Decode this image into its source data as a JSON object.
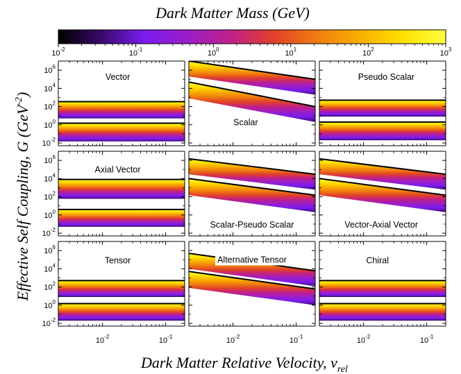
{
  "chart_data": {
    "type": "area",
    "title": "",
    "xlabel": "Dark Matter Relative Velocity, v",
    "xlabel_sub": "rel",
    "ylabel": "Effective Self Coupling, G (GeV",
    "ylabel_exp": "-2",
    "ylabel_close": ")",
    "x_scale": "log",
    "y_scale": "log",
    "xlim": [
      0.002,
      0.2
    ],
    "ylim": [
      0.005,
      10000000
    ],
    "x_ticks": [
      {
        "value": 0.01,
        "base": "10",
        "exp": "-2"
      },
      {
        "value": 0.1,
        "base": "10",
        "exp": "-1"
      }
    ],
    "y_ticks": [
      {
        "value": 0.01,
        "base": "10",
        "exp": "-2"
      },
      {
        "value": 1,
        "base": "10",
        "exp": "0"
      },
      {
        "value": 100,
        "base": "10",
        "exp": "2"
      },
      {
        "value": 10000,
        "base": "10",
        "exp": "4"
      },
      {
        "value": 1000000,
        "base": "10",
        "exp": "6"
      }
    ],
    "colorbar": {
      "label": "Dark Matter Mass (GeV)",
      "scale": "log",
      "range": [
        0.01,
        1000
      ],
      "ticks": [
        {
          "value": 0.01,
          "base": "10",
          "exp": "-2"
        },
        {
          "value": 0.1,
          "base": "10",
          "exp": "-1"
        },
        {
          "value": 1,
          "base": "10",
          "exp": "0"
        },
        {
          "value": 10,
          "base": "10",
          "exp": "1"
        },
        {
          "value": 100,
          "base": "10",
          "exp": "2"
        },
        {
          "value": 1000,
          "base": "10",
          "exp": "3"
        }
      ],
      "colors": [
        "#000000",
        "#3a0a6a",
        "#7a1cf0",
        "#9a1ec8",
        "#c0208a",
        "#e0402a",
        "#f07c10",
        "#f8b000",
        "#ffe000",
        "#ffff40"
      ]
    },
    "panels": [
      {
        "name": "Vector",
        "bands": [
          {
            "x": [
              0.002,
              0.2
            ],
            "top": [
              350,
              350
            ],
            "bottom": [
              5,
              5
            ]
          },
          {
            "x": [
              0.002,
              0.2
            ],
            "top": [
              1.5,
              1.5
            ],
            "bottom": [
              0.015,
              0.015
            ]
          }
        ]
      },
      {
        "name": "Scalar",
        "bands": [
          {
            "x": [
              0.002,
              0.2
            ],
            "top": [
              10000000,
              100000
            ],
            "bottom": [
              200000,
              2000
            ]
          },
          {
            "x": [
              0.002,
              0.2
            ],
            "top": [
              50000,
              100
            ],
            "bottom": [
              800,
              2
            ]
          }
        ]
      },
      {
        "name": "Pseudo Scalar",
        "bands": [
          {
            "x": [
              0.002,
              0.2
            ],
            "top": [
              500,
              500
            ],
            "bottom": [
              8,
              8
            ]
          },
          {
            "x": [
              0.002,
              0.2
            ],
            "top": [
              2,
              2
            ],
            "bottom": [
              0.02,
              0.02
            ]
          }
        ]
      },
      {
        "name": "Axial Vector",
        "bands": [
          {
            "x": [
              0.002,
              0.2
            ],
            "top": [
              8000,
              8000
            ],
            "bottom": [
              60,
              60
            ]
          },
          {
            "x": [
              0.002,
              0.2
            ],
            "top": [
              4,
              4
            ],
            "bottom": [
              0.05,
              0.05
            ]
          }
        ]
      },
      {
        "name": "Scalar-Pseudo Scalar",
        "bands": [
          {
            "x": [
              0.002,
              0.2
            ],
            "top": [
              1500000,
              30000
            ],
            "bottom": [
              30000,
              600
            ]
          },
          {
            "x": [
              0.002,
              0.2
            ],
            "top": [
              10000,
              150
            ],
            "bottom": [
              150,
              2
            ]
          }
        ]
      },
      {
        "name": "Vector-Axial Vector",
        "bands": [
          {
            "x": [
              0.002,
              0.2
            ],
            "top": [
              1500000,
              30000
            ],
            "bottom": [
              30000,
              600
            ]
          },
          {
            "x": [
              0.002,
              0.2
            ],
            "top": [
              10000,
              150
            ],
            "bottom": [
              150,
              2
            ]
          }
        ]
      },
      {
        "name": "Tensor",
        "bands": [
          {
            "x": [
              0.002,
              0.2
            ],
            "top": [
              500,
              500
            ],
            "bottom": [
              8,
              8
            ]
          },
          {
            "x": [
              0.002,
              0.2
            ],
            "top": [
              1.5,
              1.5
            ],
            "bottom": [
              0.02,
              0.02
            ]
          }
        ]
      },
      {
        "name": "Alternative Tensor",
        "bands": [
          {
            "x": [
              0.002,
              0.2
            ],
            "top": [
              500000,
              6000
            ],
            "bottom": [
              10000,
              120
            ]
          },
          {
            "x": [
              0.002,
              0.2
            ],
            "top": [
              5000,
              60
            ],
            "bottom": [
              80,
              1
            ]
          }
        ]
      },
      {
        "name": "Chiral",
        "bands": [
          {
            "x": [
              0.002,
              0.2
            ],
            "top": [
              500,
              500
            ],
            "bottom": [
              8,
              8
            ]
          },
          {
            "x": [
              0.002,
              0.2
            ],
            "top": [
              1.5,
              1.5
            ],
            "bottom": [
              0.02,
              0.02
            ]
          }
        ]
      }
    ]
  }
}
